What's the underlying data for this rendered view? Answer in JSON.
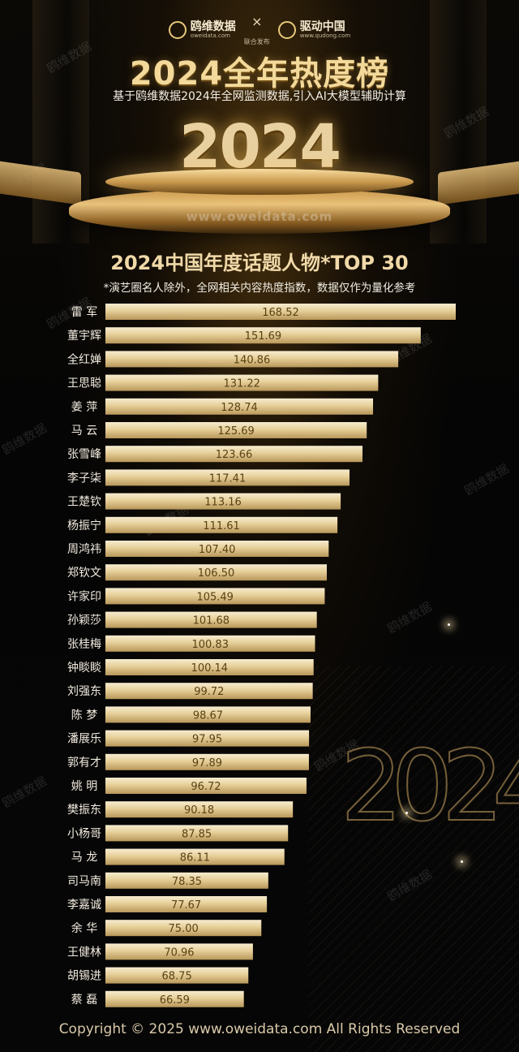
{
  "header": {
    "brand_left_name": "鸥维数据",
    "brand_left_url": "oweidata.com",
    "brand_separator": "×",
    "brand_joint": "联合发布",
    "brand_right_name": "驱动中国",
    "brand_right_url": "www.qudong.com",
    "title": "2024全年热度榜",
    "subtitle": "基于鸥维数据2024年全网监测数据,引入AI大模型辅助计算",
    "year_graphic": "2024",
    "podium_url": "www.oweidata.com",
    "watermark": "鸥维数据"
  },
  "chart_data": {
    "type": "bar",
    "orientation": "horizontal",
    "title": "2024中国年度话题人物*TOP 30",
    "note": "*演艺圈名人除外，全网相关内容热度指数，数据仅作为量化参考",
    "categories": [
      "雷 军",
      "董宇辉",
      "全红婵",
      "王思聪",
      "姜 萍",
      "马 云",
      "张雪峰",
      "李子柒",
      "王楚钦",
      "杨振宁",
      "周鸿祎",
      "郑钦文",
      "许家印",
      "孙颖莎",
      "张桂梅",
      "钟睒睒",
      "刘强东",
      "陈 梦",
      "潘展乐",
      "郭有才",
      "姚 明",
      "樊振东",
      "小杨哥",
      "马 龙",
      "司马南",
      "李嘉诚",
      "余 华",
      "王健林",
      "胡锡进",
      "蔡 磊"
    ],
    "value_labels": [
      "168.52",
      "151.69",
      "140.86",
      "131.22",
      "128.74",
      "125.69",
      "123.66",
      "117.41",
      "113.16",
      "111.61",
      "107.40",
      "106.50",
      "105.49",
      "101.68",
      "100.83",
      "100.14",
      "99.72",
      "98.67",
      "97.95",
      "97.89",
      "96.72",
      "90.18",
      "87.85",
      "86.11",
      "78.35",
      "77.67",
      "75.00",
      "70.96",
      "68.75",
      "66.59"
    ],
    "values": [
      168.52,
      151.69,
      140.86,
      131.22,
      128.74,
      125.69,
      123.66,
      117.41,
      113.16,
      111.61,
      107.4,
      106.5,
      105.49,
      101.68,
      100.83,
      100.14,
      99.72,
      98.67,
      97.95,
      97.89,
      96.72,
      90.18,
      87.85,
      86.11,
      78.35,
      77.67,
      75.0,
      70.96,
      68.75,
      66.59
    ],
    "xlim": [
      0,
      168.52
    ],
    "bar_color": "#e2c98f",
    "label_color": "#f3ece0",
    "value_color": "#5a4114"
  },
  "footer": {
    "copyright": "Copyright © 2025 www.oweidata.com All Rights Reserved"
  }
}
